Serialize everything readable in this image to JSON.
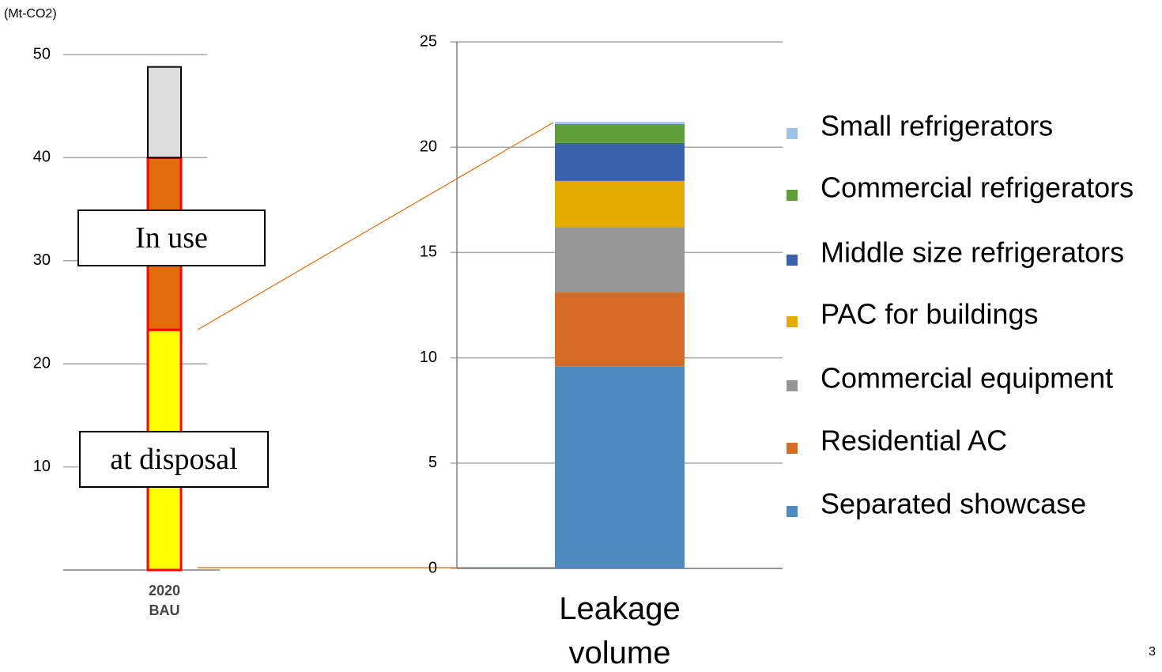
{
  "chart_data": [
    {
      "type": "bar",
      "stacked": true,
      "ylabel": "(Mt-CO2)",
      "categories": [
        "2020\nBAU"
      ],
      "series": [
        {
          "name": "In use",
          "color": "#ffff00",
          "values": [
            23.3
          ]
        },
        {
          "name": "at disposal",
          "color": "#e36c0a",
          "values": [
            16.7
          ]
        },
        {
          "color": "#dddddd",
          "values": [
            8.8
          ]
        }
      ],
      "ylim": [
        0,
        50
      ],
      "yticks": [
        10,
        20,
        30,
        40,
        50
      ],
      "grid": true
    },
    {
      "type": "bar",
      "stacked": true,
      "categories": [
        "Leakage\nvolume"
      ],
      "series": [
        {
          "name": "Separated showcase",
          "color": "#4f8bc0",
          "values": [
            9.6
          ]
        },
        {
          "name": "Residential AC",
          "color": "#d46c28",
          "values": [
            3.5
          ]
        },
        {
          "name": "Commercial equipment",
          "color": "#969696",
          "values": [
            3.1
          ]
        },
        {
          "name": "PAC for buildings",
          "color": "#e5ac00",
          "values": [
            2.2
          ]
        },
        {
          "name": "Middle size refrigerators",
          "color": "#3a62ad",
          "values": [
            1.8
          ]
        },
        {
          "name": "Commercial refrigerators",
          "color": "#5f9e3a",
          "values": [
            0.9
          ]
        },
        {
          "name": "Small refrigerators",
          "color": "#9dc3e6",
          "values": [
            0.1
          ]
        }
      ],
      "ylim": [
        0,
        25
      ],
      "yticks": [
        0,
        5,
        10,
        15,
        20,
        25
      ],
      "grid": true,
      "legend": "right"
    }
  ],
  "slide_number": "3"
}
